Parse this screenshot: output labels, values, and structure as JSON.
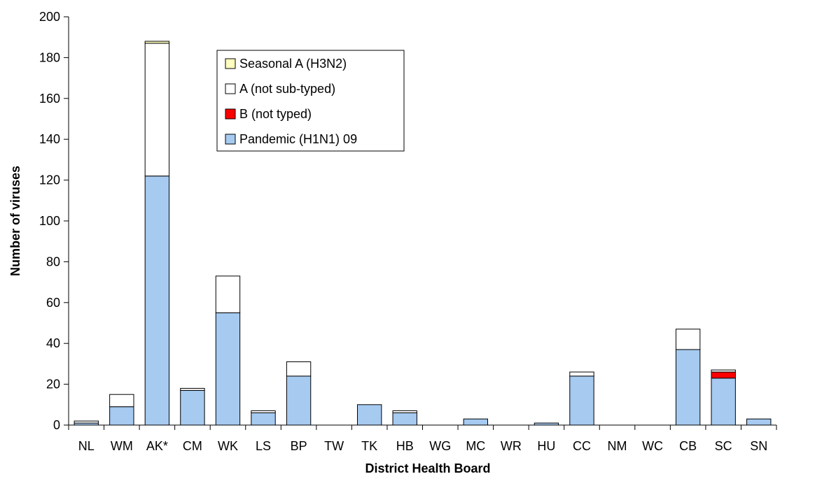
{
  "chart_data": {
    "type": "bar",
    "stacked": true,
    "xlabel": "District Health Board",
    "ylabel": "Number of viruses",
    "ylim": [
      0,
      200
    ],
    "ytick_step": 20,
    "grid": false,
    "legend_placement": "top-center",
    "categories": [
      "NL",
      "WM",
      "AK*",
      "CM",
      "WK",
      "LS",
      "BP",
      "TW",
      "TK",
      "HB",
      "WG",
      "MC",
      "WR",
      "HU",
      "CC",
      "NM",
      "WC",
      "CB",
      "SC",
      "SN"
    ],
    "series": [
      {
        "name": "Pandemic (H1N1) 09",
        "color": "#a6caf0",
        "values": [
          1,
          9,
          122,
          17,
          55,
          6,
          24,
          0,
          10,
          6,
          0,
          3,
          0,
          1,
          24,
          0,
          0,
          37,
          23,
          3
        ]
      },
      {
        "name": "B (not typed)",
        "color": "#ff0000",
        "values": [
          0,
          0,
          0,
          0,
          0,
          0,
          0,
          0,
          0,
          0,
          0,
          0,
          0,
          0,
          0,
          0,
          0,
          0,
          3,
          0
        ]
      },
      {
        "name": "A (not sub-typed)",
        "color": "#ffffff",
        "values": [
          1,
          6,
          65,
          1,
          18,
          1,
          7,
          0,
          0,
          1,
          0,
          0,
          0,
          0,
          2,
          0,
          0,
          10,
          1,
          0
        ]
      },
      {
        "name": "Seasonal A (H3N2)",
        "color": "#ffffc0",
        "values": [
          0,
          0,
          1,
          0,
          0,
          0,
          0,
          0,
          0,
          0,
          0,
          0,
          0,
          0,
          0,
          0,
          0,
          0,
          0,
          0
        ]
      }
    ],
    "legend_order": [
      "Seasonal A (H3N2)",
      "A (not sub-typed)",
      "B (not typed)",
      "Pandemic (H1N1) 09"
    ]
  }
}
